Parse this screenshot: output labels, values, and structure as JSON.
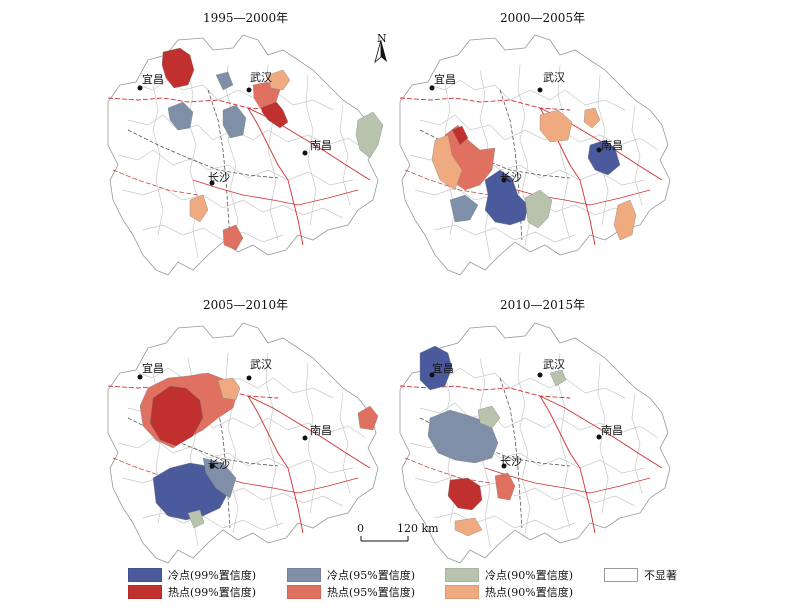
{
  "panels": [
    {
      "title": "1995—2000年"
    },
    {
      "title": "2000—2005年"
    },
    {
      "title": "2005—2010年"
    },
    {
      "title": "2010—2015年"
    }
  ],
  "cities": {
    "yichang": "宜昌",
    "wuhan": "武汉",
    "nanchang": "南昌",
    "changsha": "长沙"
  },
  "north_label": "N",
  "scale": {
    "zero": "0",
    "distance": "120 km"
  },
  "legend": [
    {
      "label": "冷点(99%置信度)",
      "color": "#4a5a9c"
    },
    {
      "label": "冷点(95%置信度)",
      "color": "#7f8fa8"
    },
    {
      "label": "冷点(90%置信度)",
      "color": "#b8c3ae"
    },
    {
      "label": "不显著",
      "color": "#ffffff"
    },
    {
      "label": "热点(99%置信度)",
      "color": "#c0302f"
    },
    {
      "label": "热点(95%置信度)",
      "color": "#e07060"
    },
    {
      "label": "热点(90%置信度)",
      "color": "#f0aa80"
    }
  ]
}
